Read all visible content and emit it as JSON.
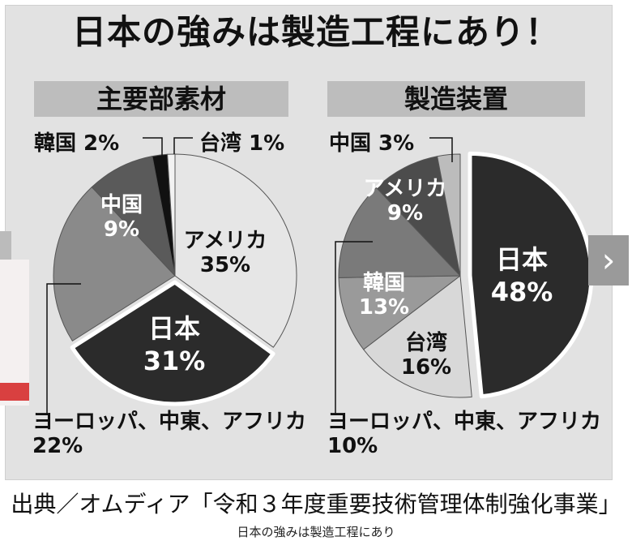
{
  "title": "日本の強みは製造工程にあり！",
  "chart_data": [
    {
      "type": "pie",
      "title": "主要部素材",
      "slices": [
        {
          "label": "アメリカ",
          "value": 35,
          "color": "#e6e6e6"
        },
        {
          "label": "日本",
          "value": 31,
          "color": "#2b2b2b"
        },
        {
          "label": "ヨーロッパ、中東、アフリカ",
          "value": 22,
          "color": "#8a8a8a"
        },
        {
          "label": "中国",
          "value": 9,
          "color": "#5a5a5a"
        },
        {
          "label": "韓国",
          "value": 2,
          "color": "#111111"
        },
        {
          "label": "台湾",
          "value": 1,
          "color": "#f2f2f2"
        }
      ],
      "labels": {
        "korea": "韓国 2%",
        "taiwan": "台湾 1%",
        "china_name": "中国",
        "china_pct": "9%",
        "america_name": "アメリカ",
        "america_pct": "35%",
        "japan_name": "日本",
        "japan_pct": "31%",
        "emea_name": "ヨーロッパ、中東、アフリカ",
        "emea_pct": "22%"
      }
    },
    {
      "type": "pie",
      "title": "製造装置",
      "slices": [
        {
          "label": "日本",
          "value": 48,
          "color": "#2b2b2b"
        },
        {
          "label": "台湾",
          "value": 16,
          "color": "#d8d8d8"
        },
        {
          "label": "ヨーロッパ、中東、アフリカ",
          "value": 10,
          "color": "#9a9a9a"
        },
        {
          "label": "韓国",
          "value": 13,
          "color": "#7a7a7a"
        },
        {
          "label": "アメリカ",
          "value": 9,
          "color": "#4c4c4c"
        },
        {
          "label": "中国",
          "value": 3,
          "color": "#bcbcbc"
        }
      ],
      "labels": {
        "china": "中国 3%",
        "america_name": "アメリカ",
        "america_pct": "9%",
        "japan_name": "日本",
        "japan_pct": "48%",
        "korea_name": "韓国",
        "korea_pct": "13%",
        "taiwan_name": "台湾",
        "taiwan_pct": "16%",
        "emea_name": "ヨーロッパ、中東、アフリカ",
        "emea_pct": "10%"
      }
    }
  ],
  "source": "出典／オムディア「令和３年度重要技術管理体制強化事業」",
  "caption": "日本の強みは製造工程にあり"
}
